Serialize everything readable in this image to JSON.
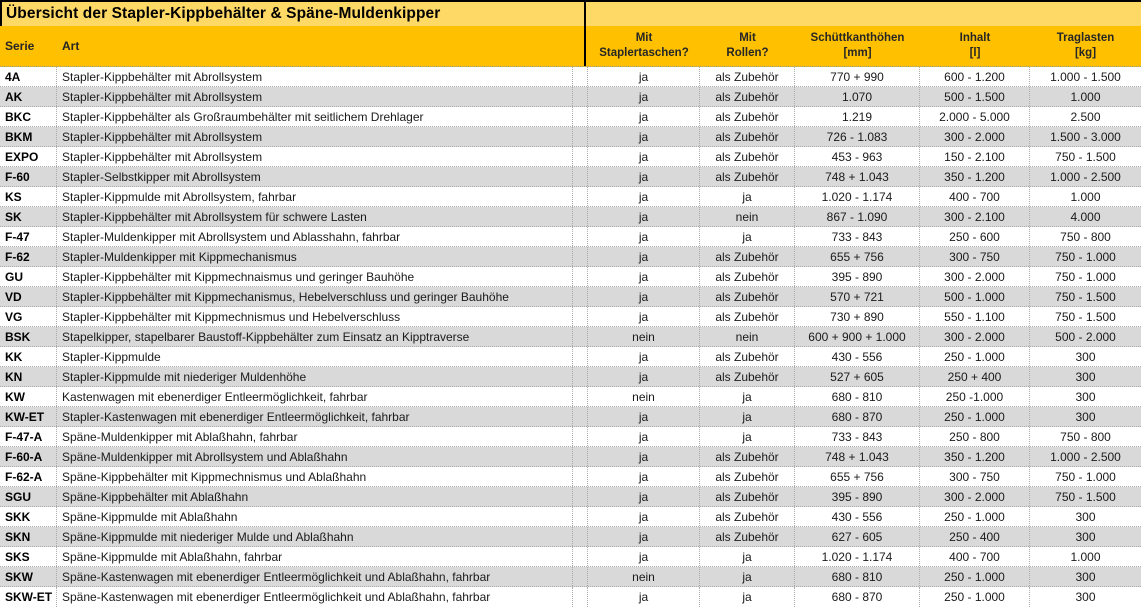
{
  "title": "Übersicht der Stapler-Kippbehälter & Späne-Muldenkipper",
  "colors": {
    "title_bg": "#FFD966",
    "header_bg": "#FFC000",
    "row_bg": "#FFFFFF",
    "row_alt_bg": "#D9D9D9",
    "border_black": "#000000",
    "grid_dots": "#ABABAB"
  },
  "table": {
    "headers": {
      "serie": "Serie",
      "art": "Art",
      "staplertaschen": {
        "line1": "Mit",
        "line2": "Staplertaschen?"
      },
      "rollen": {
        "line1": "Mit",
        "line2": "Rollen?"
      },
      "schuettkanthoehen": {
        "line1": "Schüttkanthöhen",
        "line2": "[mm]"
      },
      "inhalt": {
        "line1": "Inhalt",
        "line2": "[l]"
      },
      "traglasten": {
        "line1": "Traglasten",
        "line2": "[kg]"
      }
    },
    "rows": [
      {
        "serie": "4A",
        "art": "Stapler-Kippbehälter mit Abrollsystem",
        "staplertaschen": "ja",
        "rollen": "als Zubehör",
        "schuettkanthoehen": "770 + 990",
        "inhalt": "600 - 1.200",
        "traglasten": "1.000 - 1.500"
      },
      {
        "serie": "AK",
        "art": "Stapler-Kippbehälter mit Abrollsystem",
        "staplertaschen": "ja",
        "rollen": "als Zubehör",
        "schuettkanthoehen": "1.070",
        "inhalt": "500 - 1.500",
        "traglasten": "1.000"
      },
      {
        "serie": "BKC",
        "art": "Stapler-Kippbehälter als Großraumbehälter mit seitlichem Drehlager",
        "staplertaschen": "ja",
        "rollen": "als Zubehör",
        "schuettkanthoehen": "1.219",
        "inhalt": "2.000 - 5.000",
        "traglasten": "2.500"
      },
      {
        "serie": "BKM",
        "art": "Stapler-Kippbehälter mit Abrollsystem",
        "staplertaschen": "ja",
        "rollen": "als Zubehör",
        "schuettkanthoehen": "726 - 1.083",
        "inhalt": "300 - 2.000",
        "traglasten": "1.500 - 3.000"
      },
      {
        "serie": "EXPO",
        "art": "Stapler-Kippbehälter mit Abrollsystem",
        "staplertaschen": "ja",
        "rollen": "als Zubehör",
        "schuettkanthoehen": "453 - 963",
        "inhalt": "150 - 2.100",
        "traglasten": "750 - 1.500"
      },
      {
        "serie": "F-60",
        "art": "Stapler-Selbstkipper mit Abrollsystem",
        "staplertaschen": "ja",
        "rollen": "als Zubehör",
        "schuettkanthoehen": "748 + 1.043",
        "inhalt": "350 - 1.200",
        "traglasten": "1.000 - 2.500"
      },
      {
        "serie": "KS",
        "art": "Stapler-Kippmulde mit Abrollsystem, fahrbar",
        "staplertaschen": "ja",
        "rollen": "ja",
        "schuettkanthoehen": "1.020 - 1.174",
        "inhalt": "400 - 700",
        "traglasten": "1.000"
      },
      {
        "serie": "SK",
        "art": "Stapler-Kippbehälter mit Abrollsystem für schwere Lasten",
        "staplertaschen": "ja",
        "rollen": "nein",
        "schuettkanthoehen": "867 - 1.090",
        "inhalt": "300 - 2.100",
        "traglasten": "4.000"
      },
      {
        "serie": "F-47",
        "art": "Stapler-Muldenkipper mit Abrollsystem und Ablasshahn, fahrbar",
        "staplertaschen": "ja",
        "rollen": "ja",
        "schuettkanthoehen": "733 - 843",
        "inhalt": "250 - 600",
        "traglasten": "750 - 800"
      },
      {
        "serie": "F-62",
        "art": "Stapler-Muldenkipper mit Kippmechanismus",
        "staplertaschen": "ja",
        "rollen": "als Zubehör",
        "schuettkanthoehen": "655 + 756",
        "inhalt": "300 - 750",
        "traglasten": "750 - 1.000"
      },
      {
        "serie": "GU",
        "art": "Stapler-Kippbehälter mit Kippmechnaismus und geringer Bauhöhe",
        "staplertaschen": "ja",
        "rollen": "als Zubehör",
        "schuettkanthoehen": "395 - 890",
        "inhalt": "300 - 2.000",
        "traglasten": "750 - 1.000"
      },
      {
        "serie": "VD",
        "art": "Stapler-Kippbehälter mit Kippmechanismus, Hebelverschluss und geringer Bauhöhe",
        "staplertaschen": "ja",
        "rollen": "als Zubehör",
        "schuettkanthoehen": "570 + 721",
        "inhalt": "500 - 1.000",
        "traglasten": "750 - 1.500"
      },
      {
        "serie": "VG",
        "art": "Stapler-Kippbehälter mit Kippmechnismus und Hebelverschluss",
        "staplertaschen": "ja",
        "rollen": "als Zubehör",
        "schuettkanthoehen": "730 + 890",
        "inhalt": "550 - 1.100",
        "traglasten": "750 - 1.500"
      },
      {
        "serie": "BSK",
        "art": "Stapelkipper, stapelbarer Baustoff-Kippbehälter zum Einsatz an Kipptraverse",
        "staplertaschen": "nein",
        "rollen": "nein",
        "schuettkanthoehen": "600 + 900 + 1.000",
        "inhalt": "300 - 2.000",
        "traglasten": "500 - 2.000"
      },
      {
        "serie": "KK",
        "art": "Stapler-Kippmulde",
        "staplertaschen": "ja",
        "rollen": "als Zubehör",
        "schuettkanthoehen": "430 - 556",
        "inhalt": "250 - 1.000",
        "traglasten": "300"
      },
      {
        "serie": "KN",
        "art": "Stapler-Kippmulde mit niederiger Muldenhöhe",
        "staplertaschen": "ja",
        "rollen": "als Zubehör",
        "schuettkanthoehen": "527 + 605",
        "inhalt": "250 + 400",
        "traglasten": "300"
      },
      {
        "serie": "KW",
        "art": "Kastenwagen mit ebenerdiger Entleermöglichkeit, fahrbar",
        "staplertaschen": "nein",
        "rollen": "ja",
        "schuettkanthoehen": "680 - 810",
        "inhalt": "250 -1.000",
        "traglasten": "300"
      },
      {
        "serie": "KW-ET",
        "art": "Stapler-Kastenwagen mit ebenerdiger Entleermöglichkeit, fahrbar",
        "staplertaschen": "ja",
        "rollen": "ja",
        "schuettkanthoehen": "680 - 870",
        "inhalt": "250 - 1.000",
        "traglasten": "300"
      },
      {
        "serie": "F-47-A",
        "art": "Späne-Muldenkipper mit Ablaßhahn, fahrbar",
        "staplertaschen": "ja",
        "rollen": "ja",
        "schuettkanthoehen": "733 - 843",
        "inhalt": "250 - 800",
        "traglasten": "750 - 800"
      },
      {
        "serie": "F-60-A",
        "art": "Späne-Muldenkipper mit Abrollsystem und Ablaßhahn",
        "staplertaschen": "ja",
        "rollen": "als Zubehör",
        "schuettkanthoehen": "748 + 1.043",
        "inhalt": "350 - 1.200",
        "traglasten": "1.000 - 2.500"
      },
      {
        "serie": "F-62-A",
        "art": "Späne-Kippbehälter mit Kippmechnismus und Ablaßhahn",
        "staplertaschen": "ja",
        "rollen": "als Zubehör",
        "schuettkanthoehen": "655 + 756",
        "inhalt": "300 - 750",
        "traglasten": "750 - 1.000"
      },
      {
        "serie": "SGU",
        "art": "Späne-Kippbehälter mit Ablaßhahn",
        "staplertaschen": "ja",
        "rollen": "als Zubehör",
        "schuettkanthoehen": "395 - 890",
        "inhalt": "300 - 2.000",
        "traglasten": "750 - 1.500"
      },
      {
        "serie": "SKK",
        "art": "Späne-Kippmulde mit Ablaßhahn",
        "staplertaschen": "ja",
        "rollen": "als Zubehör",
        "schuettkanthoehen": "430 - 556",
        "inhalt": "250 - 1.000",
        "traglasten": "300"
      },
      {
        "serie": "SKN",
        "art": "Späne-Kippmulde mit niederiger Mulde und Ablaßhahn",
        "staplertaschen": "ja",
        "rollen": "als Zubehör",
        "schuettkanthoehen": "627 - 605",
        "inhalt": "250 - 400",
        "traglasten": "300"
      },
      {
        "serie": "SKS",
        "art": "Späne-Kippmulde mit Ablaßhahn, fahrbar",
        "staplertaschen": "ja",
        "rollen": "ja",
        "schuettkanthoehen": "1.020 - 1.174",
        "inhalt": "400 - 700",
        "traglasten": "1.000"
      },
      {
        "serie": "SKW",
        "art": "Späne-Kastenwagen mit ebenerdiger Entleermöglichkeit und Ablaßhahn, fahrbar",
        "staplertaschen": "nein",
        "rollen": "ja",
        "schuettkanthoehen": "680 - 810",
        "inhalt": "250 - 1.000",
        "traglasten": "300"
      },
      {
        "serie": "SKW-ET",
        "art": "Späne-Kastenwagen mit ebenerdiger Entleermöglichkeit und Ablaßhahn, fahrbar",
        "staplertaschen": "ja",
        "rollen": "ja",
        "schuettkanthoehen": "680 - 870",
        "inhalt": "250 - 1.000",
        "traglasten": "300"
      }
    ]
  }
}
